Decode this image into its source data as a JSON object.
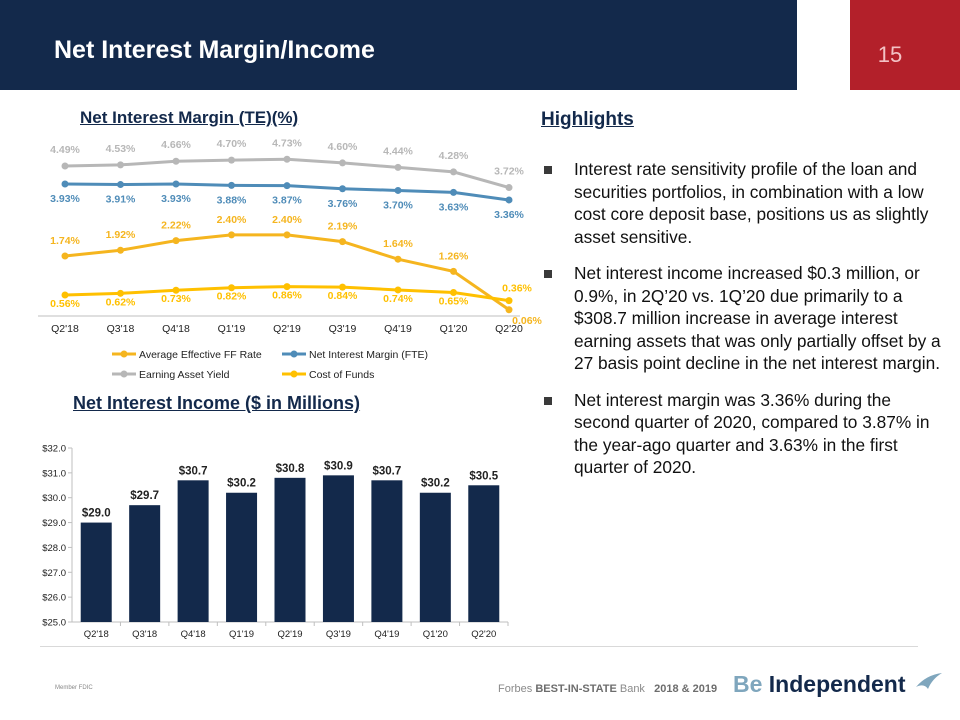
{
  "header": {
    "title": "Net Interest Margin/Income",
    "page_number": "15"
  },
  "nim_chart": {
    "title": "Net Interest Margin (TE)(%)",
    "legend": [
      "Average Effective FF Rate",
      "Net Interest Margin (FTE)",
      "Earning Asset Yield",
      "Cost of Funds"
    ]
  },
  "nii_chart": {
    "title": "Net Interest Income ($ in Millions)"
  },
  "highlights": {
    "title": "Highlights",
    "bullets": [
      "Interest rate sensitivity profile of the loan and securities portfolios, in combination with a low cost core deposit base, positions us as slightly asset sensitive.",
      "Net interest income increased $0.3 million, or 0.9%, in 2Q’20 vs. 1Q’20 due primarily to a $308.7 million increase in average interest earning assets that was only partially offset by a 27 basis point decline in the net interest margin.",
      "Net interest margin was 3.36% during the second quarter of 2020, compared to 3.87% in the year-ago quarter and 3.63% in the first quarter of 2020."
    ]
  },
  "footer": {
    "fdic_text": "Member FDIC",
    "forbes_prefix": "Forbes",
    "forbes_award": "BEST-IN-STATE",
    "forbes_suffix": "Bank",
    "forbes_years": "2018 & 2019",
    "brand_be": "Be",
    "brand_independent": "Independent"
  },
  "colors": {
    "navy": "#13294b",
    "red": "#b3202a",
    "ff_rate": "#f5b51f",
    "nim": "#4f8cb8",
    "yield": "#b7b7b7",
    "cost": "#ffc000",
    "bar": "#13294b"
  },
  "chart_data": [
    {
      "type": "line",
      "title": "Net Interest Margin (TE)(%)",
      "categories": [
        "Q2'18",
        "Q3'18",
        "Q4'18",
        "Q1'19",
        "Q2'19",
        "Q3'19",
        "Q4'19",
        "Q1'20",
        "Q2'20"
      ],
      "series": [
        {
          "name": "Earning Asset Yield",
          "values": [
            4.49,
            4.53,
            4.66,
            4.7,
            4.73,
            4.6,
            4.44,
            4.28,
            3.72
          ]
        },
        {
          "name": "Net Interest Margin (FTE)",
          "values": [
            3.93,
            3.91,
            3.93,
            3.88,
            3.87,
            3.76,
            3.7,
            3.63,
            3.36
          ]
        },
        {
          "name": "Average Effective FF Rate",
          "values": [
            1.74,
            1.92,
            2.22,
            2.4,
            2.4,
            2.19,
            1.64,
            1.26,
            0.06
          ]
        },
        {
          "name": "Cost of Funds",
          "values": [
            0.56,
            0.62,
            0.73,
            0.82,
            0.86,
            0.84,
            0.74,
            0.65,
            0.36
          ]
        }
      ],
      "value_labels": [
        [
          "4.49%",
          "4.53%",
          "4.66%",
          "4.70%",
          "4.73%",
          "4.60%",
          "4.44%",
          "4.28%",
          "3.72%"
        ],
        [
          "3.93%",
          "3.91%",
          "3.93%",
          "3.88%",
          "3.87%",
          "3.76%",
          "3.70%",
          "3.63%",
          "3.36%"
        ],
        [
          "1.74%",
          "1.92%",
          "2.22%",
          "2.40%",
          "2.40%",
          "2.19%",
          "1.64%",
          "1.26%",
          "0.06%"
        ],
        [
          "0.56%",
          "0.62%",
          "0.73%",
          "0.82%",
          "0.86%",
          "0.84%",
          "0.74%",
          "0.65%",
          "0.36%"
        ]
      ],
      "legend_position": "bottom",
      "grid": false
    },
    {
      "type": "bar",
      "title": "Net Interest Income ($ in Millions)",
      "categories": [
        "Q2'18",
        "Q3'18",
        "Q4'18",
        "Q1'19",
        "Q2'19",
        "Q3'19",
        "Q4'19",
        "Q1'20",
        "Q2'20"
      ],
      "values": [
        29.0,
        29.7,
        30.7,
        30.2,
        30.8,
        30.9,
        30.7,
        30.2,
        30.5
      ],
      "value_labels": [
        "$29.0",
        "$29.7",
        "$30.7",
        "$30.2",
        "$30.8",
        "$30.9",
        "$30.7",
        "$30.2",
        "$30.5"
      ],
      "ylim": [
        25.0,
        32.0
      ],
      "y_ticks": [
        "$25.0",
        "$26.0",
        "$27.0",
        "$28.0",
        "$29.0",
        "$30.0",
        "$31.0",
        "$32.0"
      ],
      "grid": false
    }
  ]
}
